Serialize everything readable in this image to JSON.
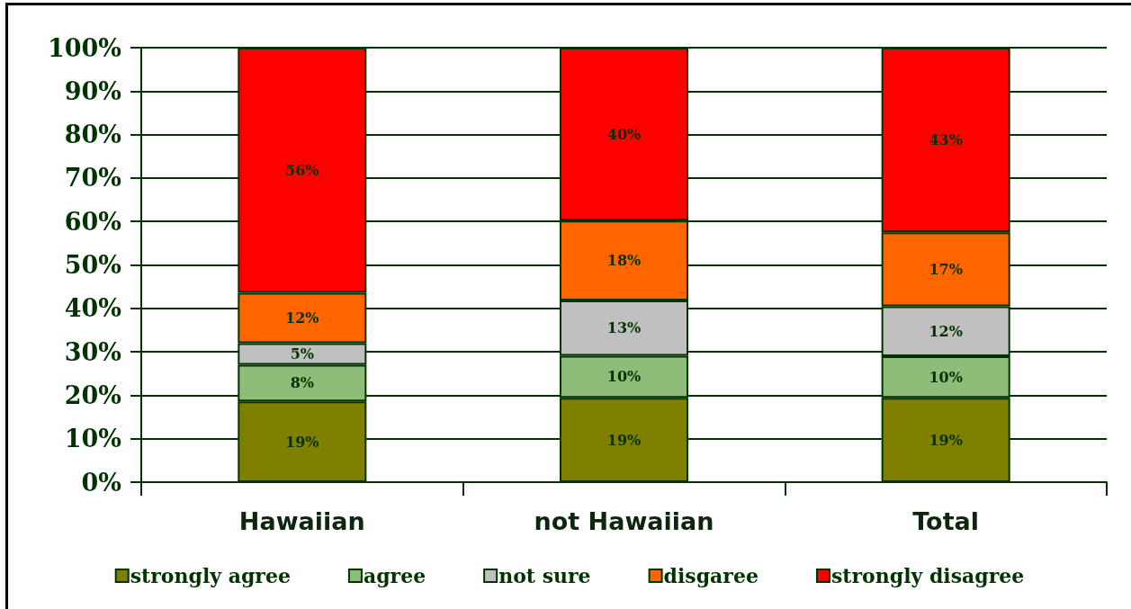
{
  "chart_data": {
    "type": "bar",
    "stacked": true,
    "categories": [
      "Hawaiian",
      "not Hawaiian",
      "Total"
    ],
    "series": [
      {
        "name": "strongly agree",
        "color": "#808000",
        "values": [
          18.6,
          19.4,
          19.4
        ],
        "value_labels": [
          "19%",
          "19%",
          "19%"
        ]
      },
      {
        "name": "agree",
        "color": "#8fbc78",
        "values": [
          8.4,
          9.7,
          9.6
        ],
        "value_labels": [
          "8%",
          "10%",
          "10%"
        ]
      },
      {
        "name": "not sure",
        "color": "#c0c0c0",
        "values": [
          5.0,
          12.7,
          11.5
        ],
        "value_labels": [
          "5%",
          "13%",
          "12%"
        ]
      },
      {
        "name": "disgaree",
        "color": "#ff6600",
        "values": [
          11.6,
          18.4,
          17.0
        ],
        "value_labels": [
          "12%",
          "18%",
          "17%"
        ]
      },
      {
        "name": "strongly disagree",
        "color": "#ff0000",
        "values": [
          56.4,
          39.8,
          42.5
        ],
        "value_labels": [
          "56%",
          "40%",
          "43%"
        ]
      }
    ],
    "ylim": [
      0,
      100
    ],
    "yticks": [
      {
        "value": 0,
        "label": "0%"
      },
      {
        "value": 10,
        "label": "10%"
      },
      {
        "value": 20,
        "label": "20%"
      },
      {
        "value": 30,
        "label": "30%"
      },
      {
        "value": 40,
        "label": "40%"
      },
      {
        "value": 50,
        "label": "50%"
      },
      {
        "value": 60,
        "label": "60%"
      },
      {
        "value": 70,
        "label": "70%"
      },
      {
        "value": 80,
        "label": "80%"
      },
      {
        "value": 90,
        "label": "90%"
      },
      {
        "value": 100,
        "label": "100%"
      }
    ],
    "grid": "y",
    "legend": "bottom"
  }
}
